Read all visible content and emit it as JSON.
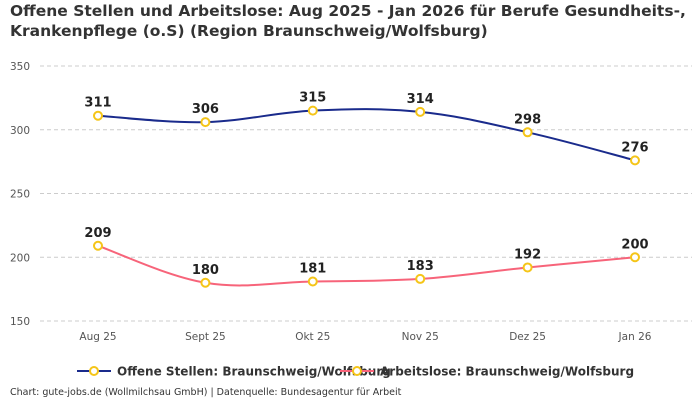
{
  "chart_data": {
    "type": "line",
    "title": "Offene Stellen und Arbeitslose: Aug 2025 - Jan 2026 für Berufe Gesundheits-, Krankenpflege (o.S) (Region Braunschweig/Wolfsburg)",
    "categories": [
      "Aug 25",
      "Sept 25",
      "Okt 25",
      "Nov 25",
      "Dez 25",
      "Jan 26"
    ],
    "series": [
      {
        "name": "Offene Stellen: Braunschweig/Wolfsburg",
        "color": "#1a2b8c",
        "values": [
          311,
          306,
          315,
          314,
          298,
          276
        ]
      },
      {
        "name": "Arbeitslose: Braunschweig/Wolfsburg",
        "color": "#f7647a",
        "values": [
          209,
          180,
          181,
          183,
          192,
          200
        ]
      }
    ],
    "marker_color": "#f5c518",
    "yticks": [
      150,
      200,
      250,
      300,
      350
    ],
    "ylim": [
      150,
      350
    ],
    "grid": true,
    "legend": "bottom",
    "xlabel": "",
    "ylabel": ""
  },
  "footer": "Chart: gute-jobs.de (Wollmilchsau GmbH) | Datenquelle: Bundesagentur für Arbeit"
}
